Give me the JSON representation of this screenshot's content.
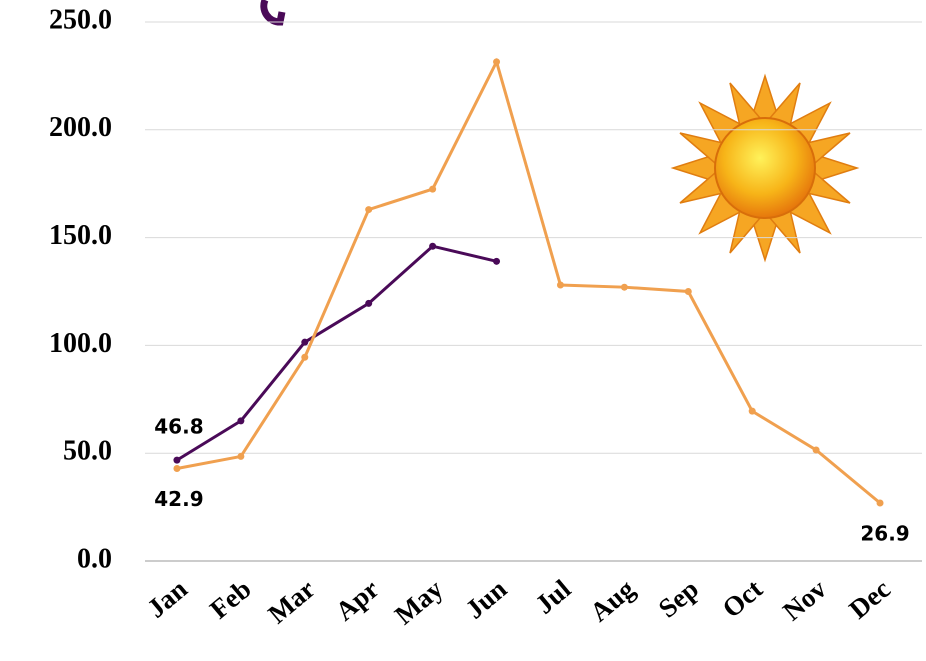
{
  "chart_data": {
    "type": "line",
    "categories": [
      "Jan",
      "Feb",
      "Mar",
      "Apr",
      "May",
      "Jun",
      "Jul",
      "Aug",
      "Sep",
      "Oct",
      "Nov",
      "Dec"
    ],
    "series": [
      {
        "color": "#4a0a58",
        "values": [
          46.8,
          65,
          101.5,
          119.5,
          146,
          139,
          null,
          null,
          null,
          null,
          null,
          null
        ],
        "value_labels": [
          "46.8",
          null,
          null,
          null,
          null,
          null,
          null,
          null,
          null,
          null,
          null,
          null
        ]
      },
      {
        "color": "#f0a04f",
        "values": [
          42.9,
          48.5,
          94.5,
          163,
          172.5,
          231.5,
          128,
          127,
          125,
          69.5,
          51.5,
          26.9
        ],
        "value_labels": [
          "42.9",
          null,
          null,
          null,
          null,
          null,
          null,
          null,
          null,
          null,
          null,
          "26.9"
        ]
      }
    ],
    "ylim": [
      0,
      250
    ],
    "yticks": [
      {
        "value": 0,
        "label": "0.0"
      },
      {
        "value": 50,
        "label": "50.0"
      },
      {
        "value": 100,
        "label": "100.0"
      },
      {
        "value": 150,
        "label": "150.0"
      },
      {
        "value": 200,
        "label": "200.0"
      },
      {
        "value": 250,
        "label": "250.0"
      }
    ],
    "grid": true
  }
}
